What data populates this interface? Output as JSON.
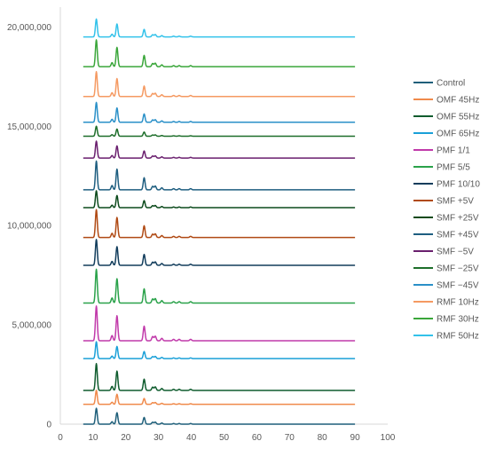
{
  "chart_data": {
    "type": "line",
    "title": "",
    "xlabel": "",
    "ylabel": "",
    "xlim": [
      0,
      100
    ],
    "ylim": [
      0,
      21000000
    ],
    "x_ticks": [
      0,
      10,
      20,
      30,
      40,
      50,
      60,
      70,
      80,
      90,
      100
    ],
    "y_ticks": [
      0,
      5000000,
      10000000,
      15000000,
      20000000
    ],
    "x_tick_labels": [
      "0",
      "10",
      "20",
      "30",
      "40",
      "50",
      "60",
      "70",
      "80",
      "90",
      "100"
    ],
    "y_tick_labels": [
      "0",
      "5,000,000",
      "10,000,000",
      "15,000,000",
      "20,000,000"
    ],
    "grid": false,
    "legend_position": "right",
    "x_range": [
      7,
      90
    ],
    "peaks": [
      {
        "x": 11.0,
        "rel": 1.0
      },
      {
        "x": 15.8,
        "rel": 0.15
      },
      {
        "x": 17.3,
        "rel": 0.72
      },
      {
        "x": 25.6,
        "rel": 0.42
      },
      {
        "x": 28.2,
        "rel": 0.12
      },
      {
        "x": 29.0,
        "rel": 0.13
      },
      {
        "x": 31.0,
        "rel": 0.07
      },
      {
        "x": 34.6,
        "rel": 0.04
      },
      {
        "x": 36.3,
        "rel": 0.04
      },
      {
        "x": 39.8,
        "rel": 0.04
      }
    ],
    "series": [
      {
        "name": "Control",
        "color": "#1f5f7a",
        "baseline": 0,
        "peak_height": 800000
      },
      {
        "name": "OMF 45Hz",
        "color": "#f08a4b",
        "baseline": 1000000,
        "peak_height": 700000
      },
      {
        "name": "OMF 55Hz",
        "color": "#0f5c2e",
        "baseline": 1700000,
        "peak_height": 1350000
      },
      {
        "name": "OMF 65Hz",
        "color": "#1aa0d8",
        "baseline": 3300000,
        "peak_height": 850000
      },
      {
        "name": "PMF 1/1",
        "color": "#c13aaa",
        "baseline": 4200000,
        "peak_height": 1750000
      },
      {
        "name": "PMF 5/5",
        "color": "#2aa24a",
        "baseline": 6100000,
        "peak_height": 1700000
      },
      {
        "name": "PMF 10/10",
        "color": "#123d5c",
        "baseline": 8000000,
        "peak_height": 1300000
      },
      {
        "name": "SMF +5V",
        "color": "#b04a14",
        "baseline": 9400000,
        "peak_height": 1400000
      },
      {
        "name": "SMF +25V",
        "color": "#0c4a1c",
        "baseline": 10900000,
        "peak_height": 850000
      },
      {
        "name": "SMF +45V",
        "color": "#1e5e80",
        "baseline": 11800000,
        "peak_height": 1450000
      },
      {
        "name": "SMF −5V",
        "color": "#6a1f6e",
        "baseline": 13400000,
        "peak_height": 850000
      },
      {
        "name": "SMF −25V",
        "color": "#1d6e2a",
        "baseline": 14500000,
        "peak_height": 500000
      },
      {
        "name": "SMF −45V",
        "color": "#2a90c8",
        "baseline": 15200000,
        "peak_height": 1000000
      },
      {
        "name": "RMF 10Hz",
        "color": "#f59a62",
        "baseline": 16500000,
        "peak_height": 1250000
      },
      {
        "name": "RMF 30Hz",
        "color": "#3aa63a",
        "baseline": 18000000,
        "peak_height": 1350000
      },
      {
        "name": "RMF 50Hz",
        "color": "#33c2ea",
        "baseline": 19500000,
        "peak_height": 900000
      }
    ]
  }
}
